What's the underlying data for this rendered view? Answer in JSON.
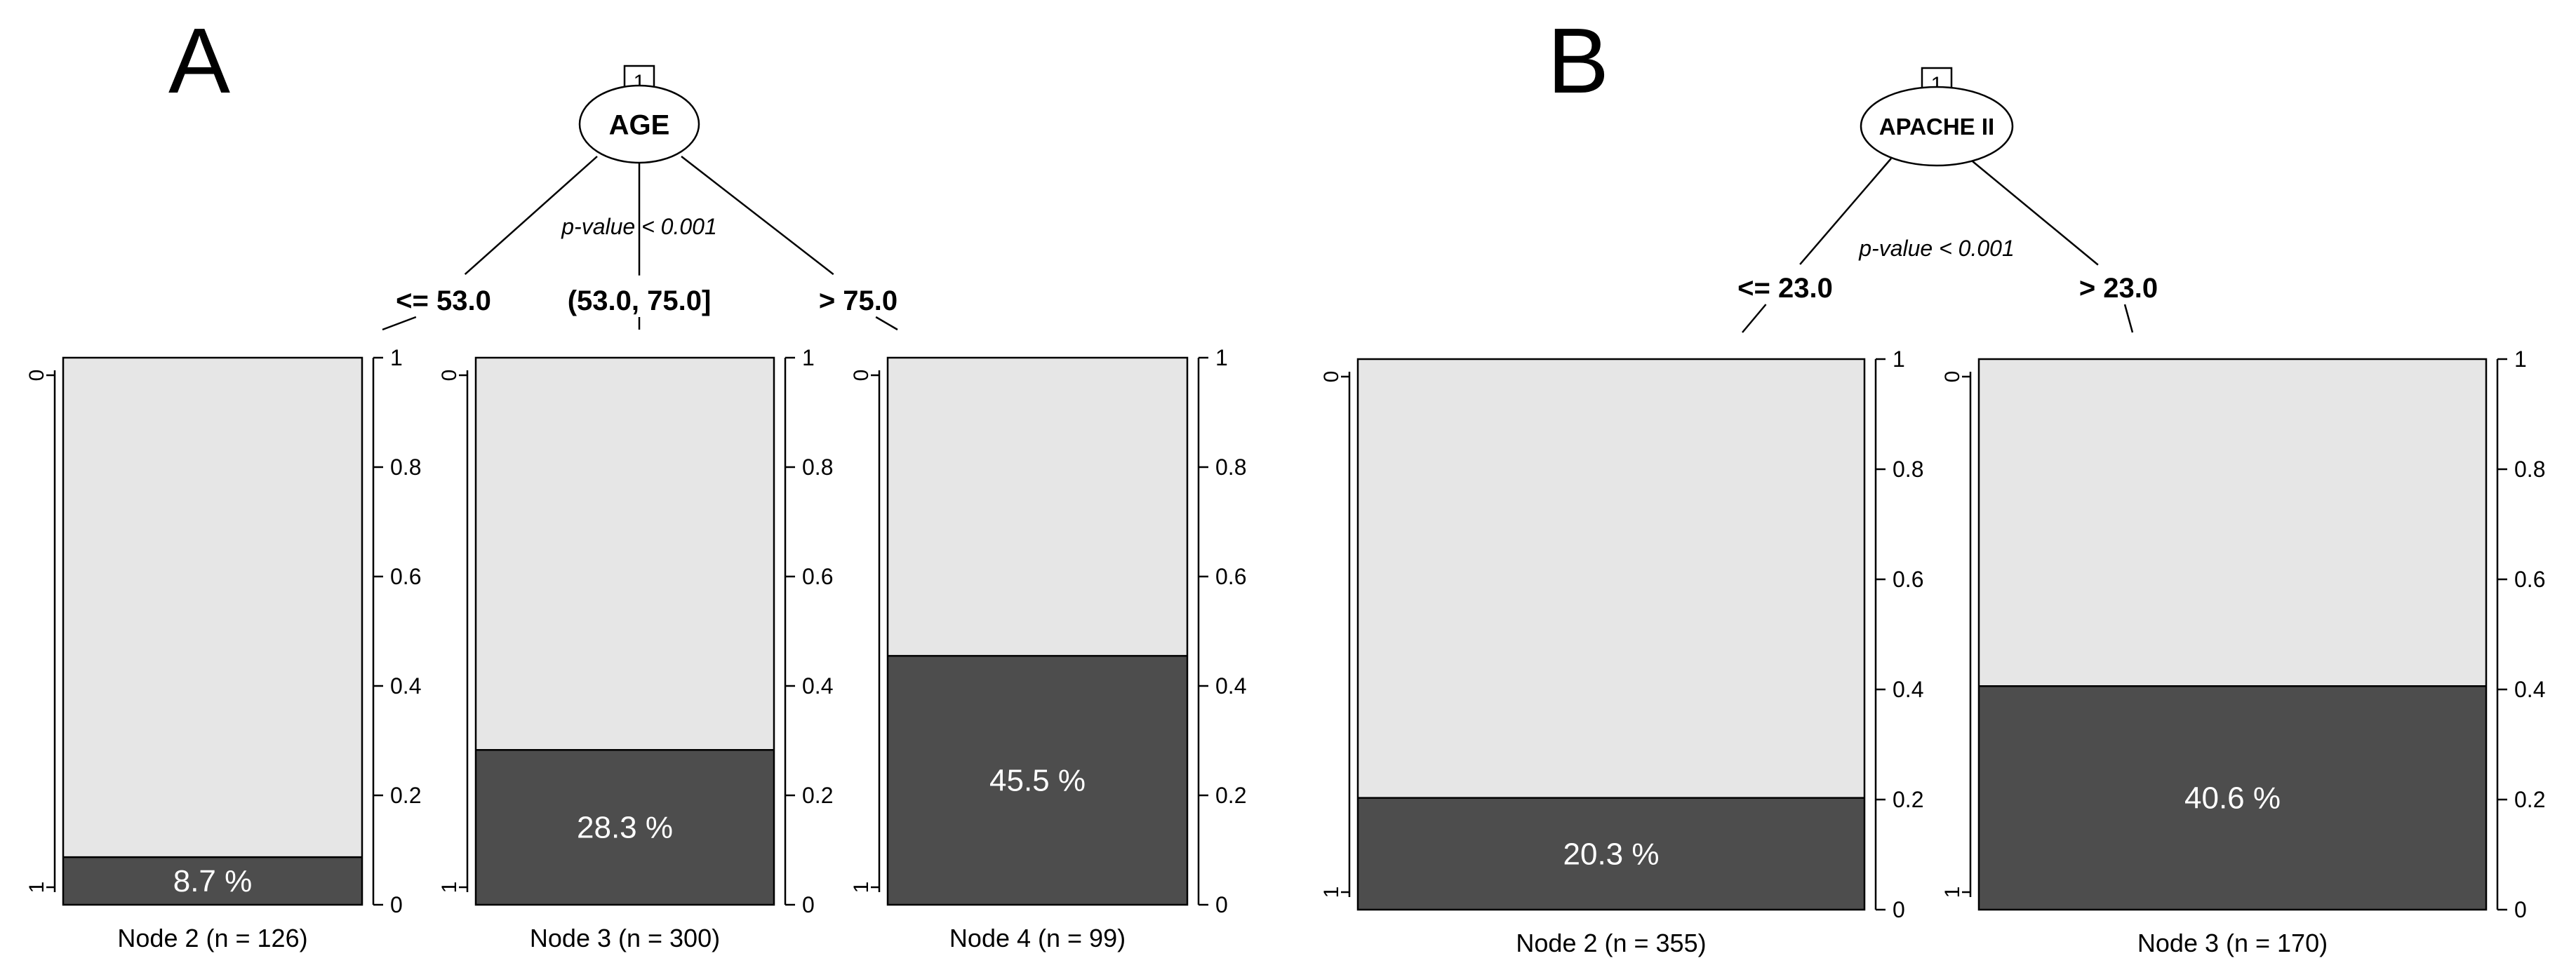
{
  "colors": {
    "bar_top": "#e6e6e6",
    "bar_bottom": "#4d4d4d",
    "line": "#000000",
    "pct_text": "#ffffff"
  },
  "chart_data": [
    {
      "type": "bar",
      "panel_label": "A",
      "root": {
        "id": "1",
        "variable": "AGE",
        "p_value": "p-value < 0.001"
      },
      "y_ticks": [
        "0",
        "0.2",
        "0.4",
        "0.6",
        "0.8",
        "1"
      ],
      "class_ticks": [
        "0",
        "1"
      ],
      "ylim": [
        0,
        1
      ],
      "nodes": [
        {
          "split": "<= 53.0",
          "label": "Node 2 (n = 126)",
          "n": 126,
          "value": 0.087,
          "pct_label": "8.7 %"
        },
        {
          "split": "(53.0, 75.0]",
          "label": "Node 3 (n = 300)",
          "n": 300,
          "value": 0.283,
          "pct_label": "28.3 %"
        },
        {
          "split": "> 75.0",
          "label": "Node 4 (n = 99)",
          "n": 99,
          "value": 0.455,
          "pct_label": "45.5 %"
        }
      ]
    },
    {
      "type": "bar",
      "panel_label": "B",
      "root": {
        "id": "1",
        "variable": "APACHE II",
        "p_value": "p-value < 0.001"
      },
      "y_ticks": [
        "0",
        "0.2",
        "0.4",
        "0.6",
        "0.8",
        "1"
      ],
      "class_ticks": [
        "0",
        "1"
      ],
      "ylim": [
        0,
        1
      ],
      "nodes": [
        {
          "split": "<= 23.0",
          "label": "Node 2 (n = 355)",
          "n": 355,
          "value": 0.203,
          "pct_label": "20.3 %"
        },
        {
          "split": "> 23.0",
          "label": "Node 3 (n = 170)",
          "n": 170,
          "value": 0.406,
          "pct_label": "40.6 %"
        }
      ]
    }
  ]
}
